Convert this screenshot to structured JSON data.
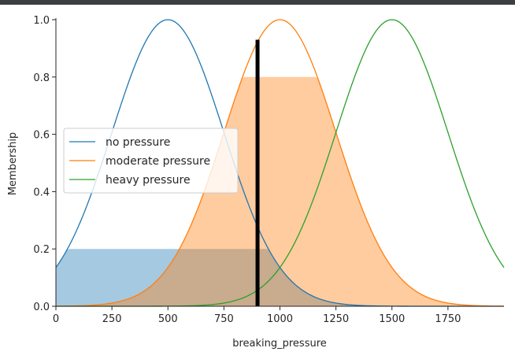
{
  "chart_data": {
    "type": "line",
    "title": "",
    "xlabel": "breaking_pressure",
    "ylabel": "Membership",
    "xlim": [
      0,
      2000
    ],
    "ylim": [
      0,
      1.0
    ],
    "x_ticks": [
      0,
      250,
      500,
      750,
      1000,
      1250,
      1500,
      1750
    ],
    "y_ticks": [
      0.0,
      0.2,
      0.4,
      0.6,
      0.8,
      1.0
    ],
    "x_tick_labels": [
      "0",
      "250",
      "500",
      "750",
      "1000",
      "1250",
      "1500",
      "1750"
    ],
    "y_tick_labels": [
      "0.0",
      "0.2",
      "0.4",
      "0.6",
      "0.8",
      "1.0"
    ],
    "grid": false,
    "legend_position": "center-left",
    "series": [
      {
        "name": "no pressure",
        "shape": "gaussian",
        "mean": 500,
        "sigma": 250,
        "color": "#1f77b4"
      },
      {
        "name": "moderate pressure",
        "shape": "gaussian",
        "mean": 1000,
        "sigma": 250,
        "color": "#ff7f0e"
      },
      {
        "name": "heavy pressure",
        "shape": "gaussian",
        "mean": 1500,
        "sigma": 250,
        "color": "#2ca02c"
      }
    ],
    "activations": [
      {
        "series": "no pressure",
        "level": 0.2
      },
      {
        "series": "moderate pressure",
        "level": 0.8
      }
    ],
    "crisp_output": {
      "x": 900,
      "height": 0.93,
      "color": "#000000"
    }
  }
}
